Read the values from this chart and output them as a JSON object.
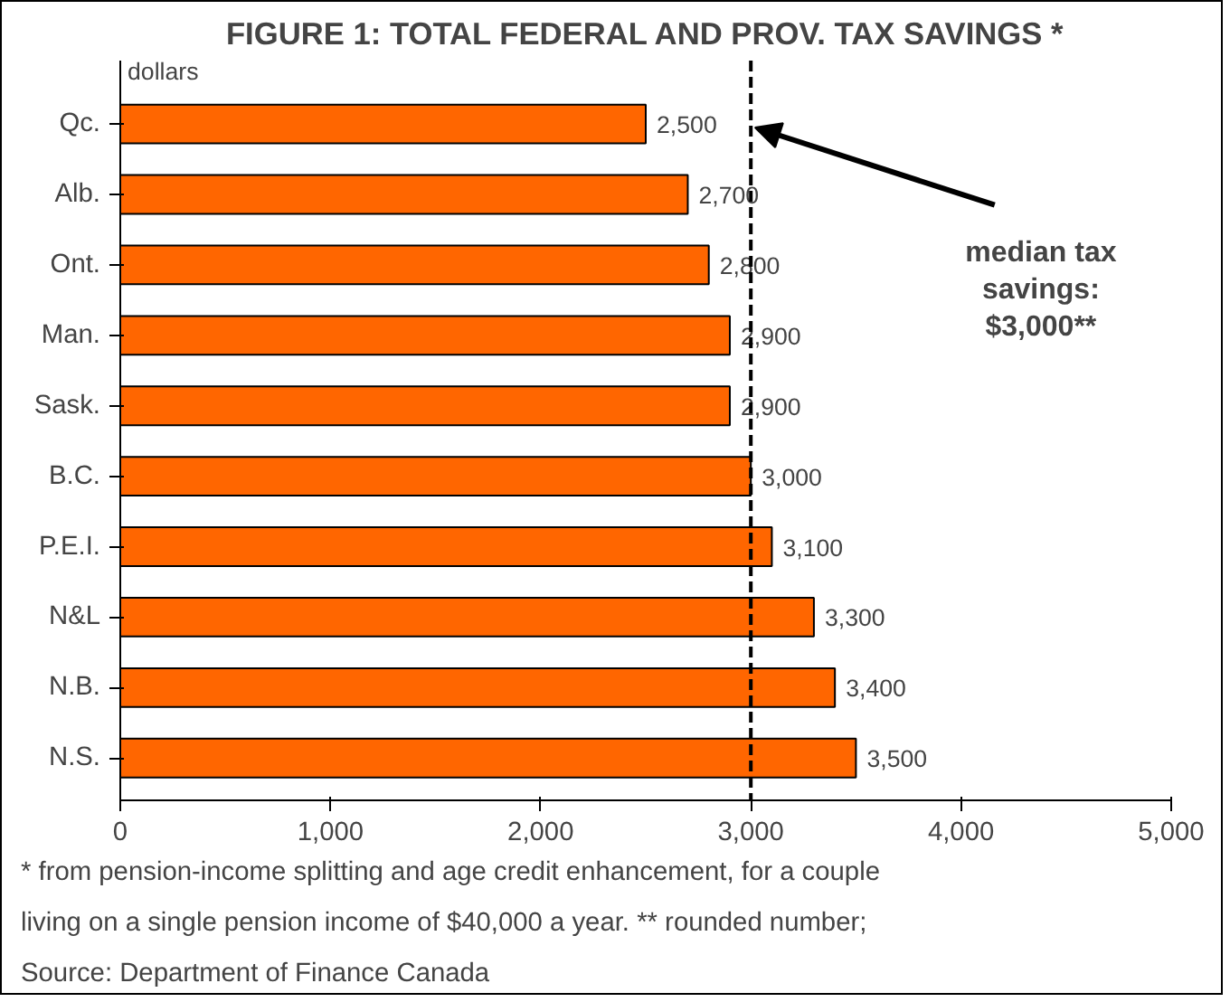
{
  "chart_data": {
    "type": "bar",
    "orientation": "horizontal",
    "title": "FIGURE 1: TOTAL FEDERAL AND PROV. TAX SAVINGS *",
    "xlabel": "dollars",
    "categories": [
      "Qc.",
      "Alb.",
      "Ont.",
      "Man.",
      "Sask.",
      "B.C.",
      "P.E.I.",
      "N&L",
      "N.B.",
      "N.S."
    ],
    "values": [
      2500,
      2700,
      2800,
      2900,
      2900,
      3000,
      3100,
      3300,
      3400,
      3500
    ],
    "color": "#ff6600",
    "grid": false,
    "value_labels": [
      "2,500",
      "2,700",
      "2,800",
      "2,900",
      "2,900",
      "3,000",
      "3,100",
      "3,300",
      "3,400",
      "3,500"
    ],
    "xlim": [
      0,
      5000
    ],
    "xticks": [
      0,
      {
        "value": 1000,
        "label": "1,000"
      },
      {
        "value": 2000,
        "label": "2,000"
      },
      {
        "value": 3000,
        "label": "3,000"
      },
      {
        "value": 4000,
        "label": "4,000"
      },
      {
        "value": 5000,
        "label": "5,000"
      }
    ],
    "ref_lines": [
      {
        "axis": "x",
        "value": 3000,
        "label": "median tax savings: $3,000**",
        "line_style": "dashed",
        "color": "#000000"
      }
    ],
    "annotations": [
      "* from pension-income splitting and age credit enhancement, for a couple",
      "living on a single  pension income of $40,000 a year.  ** rounded number;",
      "Source: Department of Finance Canada"
    ]
  }
}
